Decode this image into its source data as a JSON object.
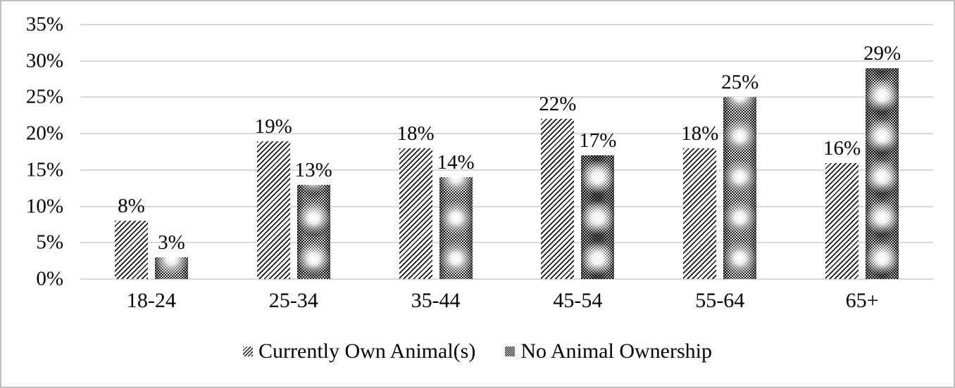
{
  "frame": {
    "background": "#ffffff",
    "border_color": "#c0c0c0"
  },
  "chart_data": {
    "type": "bar",
    "title": "",
    "xlabel": "",
    "ylabel": "",
    "categories": [
      "18-24",
      "25-34",
      "35-44",
      "45-54",
      "55-64",
      "65+"
    ],
    "series": [
      {
        "name": "Currently Own Animal(s)",
        "pattern": "diagonal-hatch",
        "values": [
          8,
          19,
          18,
          22,
          18,
          16
        ]
      },
      {
        "name": "No Animal Ownership",
        "pattern": "dark-checker",
        "values": [
          3,
          13,
          14,
          17,
          25,
          29
        ]
      }
    ],
    "ylim": [
      0,
      35
    ],
    "ytick_step": 5,
    "ytick_labels": [
      "35%",
      "30%",
      "25%",
      "20%",
      "15%",
      "10%",
      "5%",
      "0%"
    ],
    "data_label_suffix": "%",
    "grid": true,
    "gridline_color": "#d9d9d9",
    "text_color": "#000000",
    "legend_position": "bottom"
  }
}
